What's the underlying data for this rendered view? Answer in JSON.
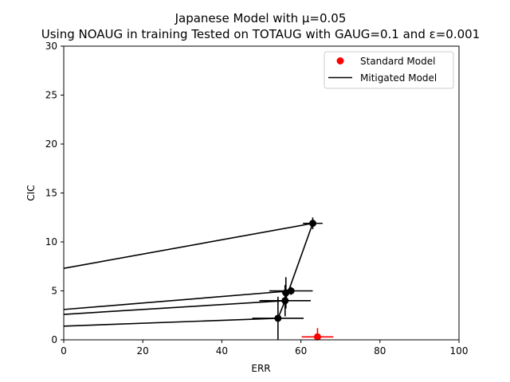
{
  "chart_data": {
    "type": "scatter",
    "title": "Japanese Model with μ=0.05",
    "subtitle": "Using NOAUG in training Tested on TOTAUG with GAUG=0.1 and ε=0.001",
    "xlabel": "ERR",
    "ylabel": "CIC",
    "xlim": [
      0,
      100
    ],
    "ylim": [
      0,
      30
    ],
    "xticks": [
      "0",
      "20",
      "40",
      "60",
      "80",
      "100"
    ],
    "yticks": [
      "0",
      "5",
      "10",
      "15",
      "20",
      "25",
      "30"
    ],
    "grid": false,
    "legend_position": "top-right",
    "colors": {
      "standard": "#ff0000",
      "mitigated": "#000000"
    },
    "series": [
      {
        "name": "Standard Model",
        "marker": "dot",
        "points": [
          {
            "x": 64.2,
            "y": 0.3,
            "xerr": 4.0,
            "yerr": 0.9
          }
        ]
      },
      {
        "name": "Mitigated Model",
        "marker": "line",
        "points": [
          {
            "x": 63.0,
            "y": 11.9,
            "xerr": 2.5,
            "yerr": 0.6
          },
          {
            "x": 57.5,
            "y": 5.0,
            "xerr": 5.5,
            "yerr": 0.4
          },
          {
            "x": 56.2,
            "y": 4.8,
            "xerr": 1.0,
            "yerr": 1.6
          },
          {
            "x": 56.0,
            "y": 4.0,
            "xerr": 6.5,
            "yerr": 1.6
          },
          {
            "x": 54.2,
            "y": 2.2,
            "xerr": 6.5,
            "yerr": 2.2
          }
        ],
        "connections": [
          [
            0,
            3
          ],
          [
            3,
            4
          ]
        ],
        "trend_lines": [
          {
            "from": {
              "x": 0,
              "y": 7.3
            },
            "to": {
              "x": 63.0,
              "y": 11.9
            }
          },
          {
            "from": {
              "x": 0,
              "y": 3.1
            },
            "to": {
              "x": 57.5,
              "y": 5.0
            }
          },
          {
            "from": {
              "x": 0,
              "y": 2.6
            },
            "to": {
              "x": 56.0,
              "y": 4.0
            }
          },
          {
            "from": {
              "x": 0,
              "y": 1.4
            },
            "to": {
              "x": 54.2,
              "y": 2.2
            }
          }
        ]
      }
    ]
  }
}
